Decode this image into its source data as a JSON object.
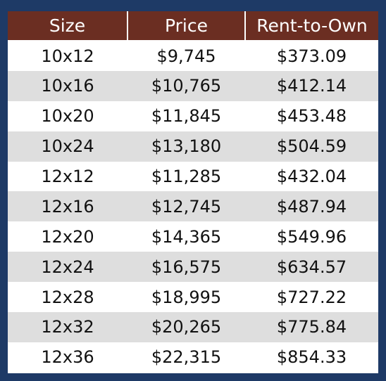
{
  "table": {
    "headers": [
      "Size",
      "Price",
      "Rent-to-Own"
    ],
    "rows": [
      [
        "10x12",
        "$9,745",
        "$373.09"
      ],
      [
        "10x16",
        "$10,765",
        "$412.14"
      ],
      [
        "10x20",
        "$11,845",
        "$453.48"
      ],
      [
        "10x24",
        "$13,180",
        "$504.59"
      ],
      [
        "12x12",
        "$11,285",
        "$432.04"
      ],
      [
        "12x16",
        "$12,745",
        "$487.94"
      ],
      [
        "12x20",
        "$14,365",
        "$549.96"
      ],
      [
        "12x24",
        "$16,575",
        "$634.57"
      ],
      [
        "12x28",
        "$18,995",
        "$727.22"
      ],
      [
        "12x32",
        "$20,265",
        "$775.84"
      ],
      [
        "12x36",
        "$22,315",
        "$854.33"
      ]
    ]
  },
  "colors": {
    "background": "#1e3a66",
    "header": "#6b2e22",
    "stripe": "#dedede"
  }
}
